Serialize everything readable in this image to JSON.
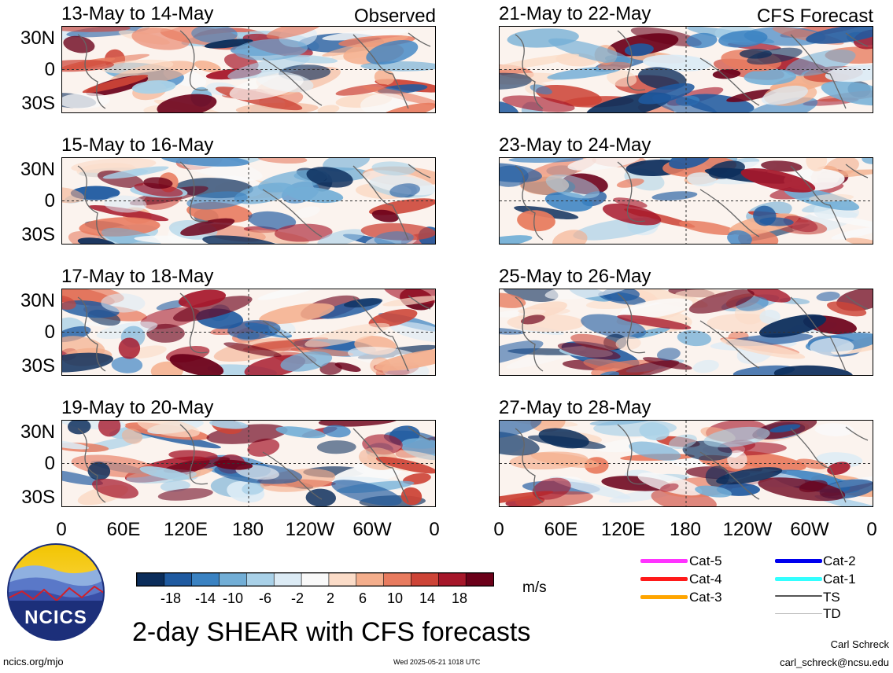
{
  "header": {
    "left_label": "Observed",
    "right_label": "CFS Forecast"
  },
  "panels": [
    {
      "title": "13-May to 14-May",
      "column": "left",
      "row": 0
    },
    {
      "title": "15-May to 16-May",
      "column": "left",
      "row": 1
    },
    {
      "title": "17-May to 18-May",
      "column": "left",
      "row": 2
    },
    {
      "title": "19-May to 20-May",
      "column": "left",
      "row": 3
    },
    {
      "title": "21-May to 22-May",
      "column": "right",
      "row": 0
    },
    {
      "title": "23-May to 24-May",
      "column": "right",
      "row": 1
    },
    {
      "title": "25-May to 26-May",
      "column": "right",
      "row": 2
    },
    {
      "title": "27-May to 28-May",
      "column": "right",
      "row": 3
    }
  ],
  "axes": {
    "lat_ticks": [
      "30N",
      "0",
      "30S"
    ],
    "lon_ticks": [
      "0",
      "60E",
      "120E",
      "180",
      "120W",
      "60W",
      "0"
    ]
  },
  "colorbar": {
    "colors": [
      "#0b2d5b",
      "#1f5aa0",
      "#3a82c2",
      "#72aed6",
      "#a9d1e8",
      "#dcebf5",
      "#f9f9f9",
      "#fbdcc8",
      "#f4ae8c",
      "#e87b5f",
      "#cd4437",
      "#a6172a",
      "#6b0019"
    ],
    "tick_labels": [
      "-18",
      "-14",
      "-10",
      "-6",
      "-2",
      "2",
      "6",
      "10",
      "14",
      "18"
    ],
    "units": "m/s"
  },
  "legend": {
    "items": [
      {
        "label": "Cat-5",
        "color": "#ff33ff"
      },
      {
        "label": "Cat-4",
        "color": "#ff1a1a"
      },
      {
        "label": "Cat-3",
        "color": "#ffa500"
      },
      {
        "label": "Cat-2",
        "color": "#0000ee"
      },
      {
        "label": "Cat-1",
        "color": "#33ffff"
      },
      {
        "label": "TS",
        "color": "#555555"
      },
      {
        "label": "TD",
        "color": "#bbbbbb"
      }
    ]
  },
  "footer": {
    "logo_text": "NCICS",
    "main_title": "2-day SHEAR with CFS forecasts",
    "site": "ncics.org/mjo",
    "timestamp": "Wed 2025-05-21 1018 UTC",
    "author": "Carl Schreck",
    "email": "carl_schreck@ncsu.edu"
  }
}
